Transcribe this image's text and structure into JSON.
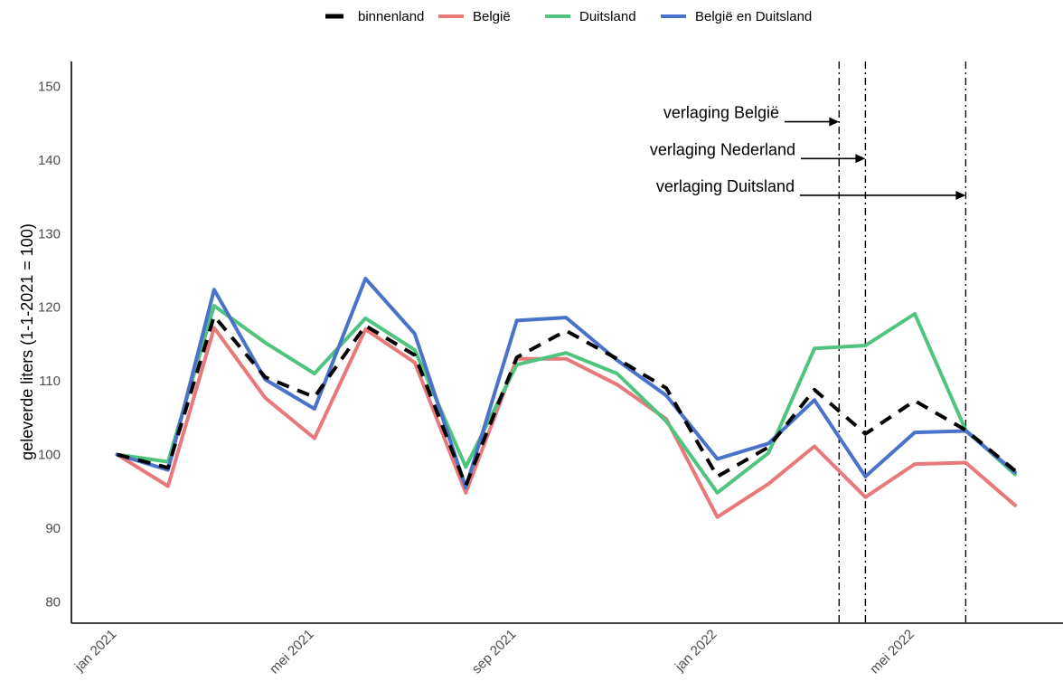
{
  "chart_data": {
    "type": "line",
    "xlabel": "",
    "ylabel": "geleverde liters (1-1-2021 = 100)",
    "ylim": [
      78,
      154
    ],
    "yticks": [
      80,
      90,
      100,
      110,
      120,
      130,
      140,
      150
    ],
    "x": [
      "2021-01",
      "2021-02",
      "2021-03",
      "2021-04",
      "2021-05",
      "2021-06",
      "2021-07",
      "2021-08",
      "2021-09",
      "2021-10",
      "2021-11",
      "2021-12",
      "2022-01",
      "2022-02",
      "2022-03",
      "2022-04",
      "2022-05",
      "2022-06",
      "2022-07"
    ],
    "xticks": [
      {
        "date": "2021-01",
        "label": "jan 2021"
      },
      {
        "date": "2021-05",
        "label": "mei 2021"
      },
      {
        "date": "2021-09",
        "label": "sep 2021"
      },
      {
        "date": "2022-01",
        "label": "jan 2022"
      },
      {
        "date": "2022-05",
        "label": "mei 2022"
      }
    ],
    "grid": false,
    "legend_position": "top",
    "series": [
      {
        "name": "binnenland",
        "color": "#000000",
        "dash": true,
        "values": [
          100,
          98.2,
          118.8,
          110.5,
          107.8,
          117.5,
          113.5,
          95.8,
          113.2,
          116.8,
          113,
          109,
          97,
          101,
          108.8,
          102.8,
          107.3,
          103.3,
          97.8
        ]
      },
      {
        "name": "België",
        "color": "#e8797a",
        "dash": false,
        "values": [
          100,
          95.7,
          117.2,
          107.7,
          102.2,
          117,
          112.5,
          94.8,
          113,
          113,
          109.5,
          104.8,
          91.5,
          96,
          101.1,
          94.2,
          98.7,
          98.9,
          93.1
        ]
      },
      {
        "name": "Duitsland",
        "color": "#4ec47f",
        "dash": false,
        "values": [
          100,
          99,
          120.2,
          115.2,
          111,
          118.5,
          114.2,
          98.3,
          112.2,
          113.8,
          111,
          104.5,
          94.8,
          100.2,
          114.4,
          114.8,
          119.1,
          103.3,
          97.3
        ]
      },
      {
        "name": "België en Duitsland",
        "color": "#4a72c8",
        "dash": false,
        "values": [
          100,
          97.9,
          122.4,
          110.2,
          106.2,
          123.9,
          116.4,
          95.5,
          118.2,
          118.6,
          112.8,
          108,
          99.4,
          101.5,
          107.4,
          97,
          103,
          103.2,
          97.6
        ]
      }
    ],
    "annotations": [
      {
        "label": "verlaging België",
        "date": "2022-03-16",
        "y": 145.2
      },
      {
        "label": "verlaging Nederland",
        "date": "2022-04-01",
        "y": 140.2
      },
      {
        "label": "verlaging Duitsland",
        "date": "2022-06-01",
        "y": 135.2
      }
    ]
  }
}
